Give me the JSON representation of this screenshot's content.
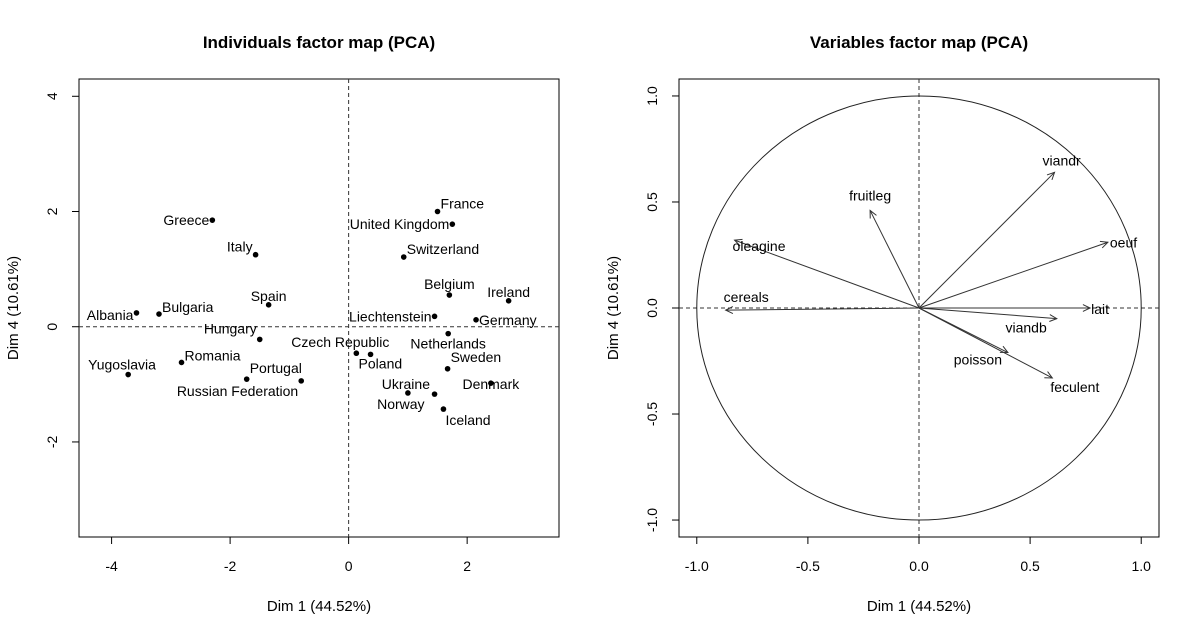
{
  "chart_data": [
    {
      "type": "scatter",
      "title": "Individuals factor map (PCA)",
      "xlabel": "Dim 1 (44.52%)",
      "ylabel": "Dim 4 (10.61%)",
      "xlim": [
        -4.55,
        3.55
      ],
      "ylim": [
        -3.65,
        4.3
      ],
      "xticks": [
        -4,
        -2,
        0,
        2
      ],
      "yticks": [
        -2,
        0,
        2,
        4
      ],
      "grid": false,
      "reference_lines": [
        "x=0 dashed",
        "y=0 dashed"
      ],
      "points": [
        {
          "label": "France",
          "x": 1.5,
          "y": 2.0
        },
        {
          "label": "United Kingdom",
          "x": 1.75,
          "y": 1.78
        },
        {
          "label": "Greece",
          "x": -2.3,
          "y": 1.85
        },
        {
          "label": "Italy",
          "x": -1.57,
          "y": 1.25
        },
        {
          "label": "Switzerland",
          "x": 0.93,
          "y": 1.21
        },
        {
          "label": "Belgium",
          "x": 1.7,
          "y": 0.55
        },
        {
          "label": "Ireland",
          "x": 2.7,
          "y": 0.45
        },
        {
          "label": "Spain",
          "x": -1.35,
          "y": 0.38
        },
        {
          "label": "Bulgaria",
          "x": -3.2,
          "y": 0.22
        },
        {
          "label": "Albania",
          "x": -3.58,
          "y": 0.24
        },
        {
          "label": "Liechtenstein",
          "x": 1.45,
          "y": 0.18
        },
        {
          "label": "Germany",
          "x": 2.15,
          "y": 0.12
        },
        {
          "label": "Hungary",
          "x": -1.5,
          "y": -0.22
        },
        {
          "label": "Netherlands",
          "x": 1.68,
          "y": -0.12
        },
        {
          "label": "Czech Republic",
          "x": 0.13,
          "y": -0.46
        },
        {
          "label": "Poland",
          "x": 0.37,
          "y": -0.48
        },
        {
          "label": "Romania",
          "x": -2.82,
          "y": -0.62
        },
        {
          "label": "Yugoslavia",
          "x": -3.72,
          "y": -0.83
        },
        {
          "label": "Portugal",
          "x": -1.72,
          "y": -0.91
        },
        {
          "label": "Russian Federation",
          "x": -0.8,
          "y": -0.94
        },
        {
          "label": "Sweden",
          "x": 1.67,
          "y": -0.73
        },
        {
          "label": "Ukraine",
          "x": 1.0,
          "y": -1.15
        },
        {
          "label": "Norway",
          "x": 1.45,
          "y": -1.17
        },
        {
          "label": "Denmark",
          "x": 2.4,
          "y": -0.98
        },
        {
          "label": "Iceland",
          "x": 1.6,
          "y": -1.43
        }
      ]
    },
    {
      "type": "scatter",
      "title": "Variables factor map (PCA)",
      "xlabel": "Dim 1 (44.52%)",
      "ylabel": "Dim 4 (10.61%)",
      "xlim": [
        -1.08,
        1.08
      ],
      "ylim": [
        -1.08,
        1.08
      ],
      "xticks": [
        "-1.0",
        "-0.5",
        "0.0",
        "0.5",
        "1.0"
      ],
      "yticks": [
        "-1.0",
        "-0.5",
        "0.0",
        "0.5",
        "1.0"
      ],
      "grid": false,
      "reference_lines": [
        "x=0 dashed",
        "y=0 dashed"
      ],
      "unit_circle": true,
      "vectors": [
        {
          "label": "viandr",
          "x": 0.61,
          "y": 0.64
        },
        {
          "label": "fruitleg",
          "x": -0.22,
          "y": 0.46
        },
        {
          "label": "oleagine",
          "x": -0.83,
          "y": 0.32
        },
        {
          "label": "oeuf",
          "x": 0.85,
          "y": 0.31
        },
        {
          "label": "cereals",
          "x": -0.87,
          "y": -0.01
        },
        {
          "label": "lait",
          "x": 0.77,
          "y": 0.0
        },
        {
          "label": "viandb",
          "x": 0.62,
          "y": -0.05
        },
        {
          "label": "poisson",
          "x": 0.4,
          "y": -0.21
        },
        {
          "label": "feculent",
          "x": 0.6,
          "y": -0.33
        }
      ]
    }
  ]
}
